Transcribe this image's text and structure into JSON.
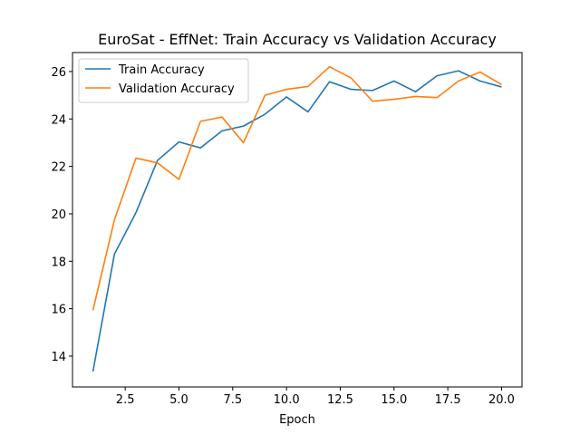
{
  "chart_data": {
    "type": "line",
    "title": "EuroSat - EffNet: Train Accuracy vs Validation Accuracy",
    "xlabel": "Epoch",
    "ylabel": "",
    "xlim": [
      0.05,
      20.95
    ],
    "ylim": [
      12.7,
      26.8
    ],
    "xticks": [
      "2.5",
      "5.0",
      "7.5",
      "10.0",
      "12.5",
      "15.0",
      "17.5",
      "20.0"
    ],
    "yticks": [
      "14",
      "16",
      "18",
      "20",
      "22",
      "24",
      "26"
    ],
    "grid": false,
    "legend_position": "upper-left",
    "x": [
      1,
      2,
      3,
      4,
      5,
      6,
      7,
      8,
      9,
      10,
      11,
      12,
      13,
      14,
      15,
      16,
      17,
      18,
      19,
      20
    ],
    "series": [
      {
        "name": "Train Accuracy",
        "color": "#1f77b4",
        "values": [
          13.35,
          18.3,
          20.05,
          22.25,
          23.03,
          22.78,
          23.5,
          23.7,
          24.2,
          24.93,
          24.3,
          25.57,
          25.25,
          25.2,
          25.6,
          25.15,
          25.82,
          26.03,
          25.6,
          25.35
        ]
      },
      {
        "name": "Validation Accuracy",
        "color": "#ff7f0e",
        "values": [
          15.93,
          19.75,
          22.35,
          22.15,
          21.45,
          23.9,
          24.08,
          23.0,
          25.0,
          25.25,
          25.37,
          26.2,
          25.73,
          24.75,
          24.83,
          24.95,
          24.9,
          25.6,
          25.98,
          25.45
        ]
      }
    ]
  }
}
